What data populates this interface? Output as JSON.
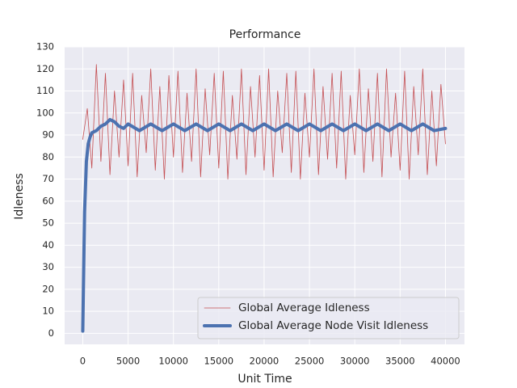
{
  "chart_data": {
    "type": "line",
    "title": "Performance",
    "x_label": "Unit Time",
    "y_label": "Idleness",
    "xlim": [
      -2000,
      42100
    ],
    "ylim": [
      -5,
      130
    ],
    "xticks": [
      0,
      5000,
      10000,
      15000,
      20000,
      25000,
      30000,
      35000,
      40000
    ],
    "yticks": [
      0,
      10,
      20,
      30,
      40,
      50,
      60,
      70,
      80,
      90,
      100,
      110,
      120,
      130
    ],
    "grid": true,
    "legend": "lower right",
    "series": [
      {
        "name": "Global Average Idleness",
        "color": "#c44e52",
        "width": 0.8,
        "x": [
          0,
          500,
          1000,
          1500,
          2000,
          2500,
          3000,
          3500,
          4000,
          4500,
          5000,
          5500,
          6000,
          6500,
          7000,
          7500,
          8000,
          8500,
          9000,
          9500,
          10000,
          10500,
          11000,
          11500,
          12000,
          12500,
          13000,
          13500,
          14000,
          14500,
          15000,
          15500,
          16000,
          16500,
          17000,
          17500,
          18000,
          18500,
          19000,
          19500,
          20000,
          20500,
          21000,
          21500,
          22000,
          22500,
          23000,
          23500,
          24000,
          24500,
          25000,
          25500,
          26000,
          26500,
          27000,
          27500,
          28000,
          28500,
          29000,
          29500,
          30000,
          30500,
          31000,
          31500,
          32000,
          32500,
          33000,
          33500,
          34000,
          34500,
          35000,
          35500,
          36000,
          36500,
          37000,
          37500,
          38000,
          38500,
          39000,
          39500,
          40000
        ],
        "values": [
          88,
          102,
          75,
          122,
          78,
          118,
          72,
          110,
          80,
          115,
          76,
          118,
          71,
          108,
          82,
          120,
          74,
          112,
          70,
          117,
          80,
          119,
          73,
          109,
          78,
          120,
          71,
          111,
          81,
          118,
          75,
          119,
          70,
          108,
          79,
          120,
          72,
          112,
          80,
          117,
          74,
          120,
          71,
          110,
          82,
          118,
          73,
          119,
          70,
          109,
          80,
          120,
          72,
          112,
          79,
          118,
          75,
          119,
          70,
          108,
          81,
          120,
          73,
          111,
          78,
          118,
          71,
          120,
          80,
          109,
          74,
          119,
          70,
          112,
          81,
          120,
          72,
          110,
          76,
          113,
          86
        ]
      },
      {
        "name": "Global Average Node Visit Idleness",
        "color": "#4c72b0",
        "width": 4,
        "x": [
          0,
          200,
          400,
          600,
          800,
          1000,
          1500,
          2000,
          2500,
          3000,
          3500,
          4000,
          4500,
          5000,
          6250,
          7500,
          8750,
          10000,
          11250,
          12500,
          13750,
          15000,
          16250,
          17500,
          18750,
          20000,
          21250,
          22500,
          23750,
          25000,
          26250,
          27500,
          28750,
          30000,
          31250,
          32500,
          33750,
          35000,
          36250,
          37500,
          38750,
          40000
        ],
        "values": [
          1,
          55,
          78,
          86,
          89,
          91,
          92,
          94,
          95,
          97,
          96,
          94,
          93,
          95,
          92,
          95,
          92,
          95,
          92,
          95,
          92,
          95,
          92,
          95,
          92,
          95,
          92,
          95,
          92,
          95,
          92,
          95,
          92,
          95,
          92,
          95,
          92,
          95,
          92,
          95,
          92,
          93
        ]
      }
    ]
  }
}
